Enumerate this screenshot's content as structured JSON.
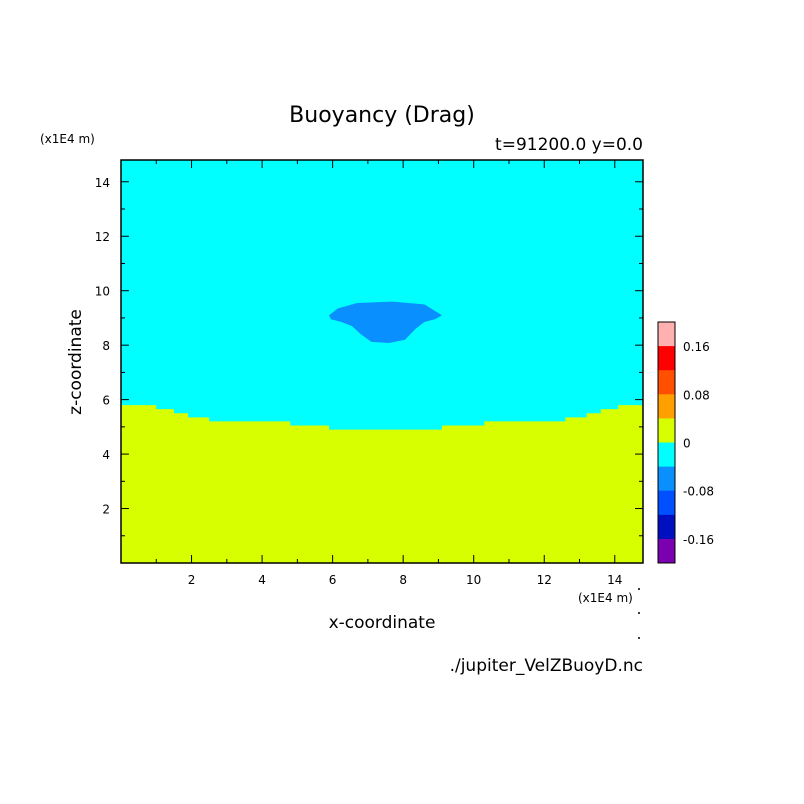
{
  "chart_data": {
    "type": "heatmap",
    "title": "Buoyancy (Drag)",
    "subtitle": "t=91200.0 y=0.0",
    "xlabel": "x-coordinate",
    "ylabel": "z-coordinate",
    "x_unit": "(x1E4 m)",
    "y_unit": "(x1E4 m)",
    "footer": "./jupiter_VelZBuoyD.nc",
    "xlim": [
      0,
      14.8
    ],
    "ylim": [
      0,
      14.8
    ],
    "xticks": [
      2,
      4,
      6,
      8,
      10,
      12,
      14
    ],
    "yticks": [
      2,
      4,
      6,
      8,
      10,
      12,
      14
    ],
    "background_color": "#00ffff",
    "lower_region": {
      "color": "#d8ff00",
      "level": "0 to 0.04",
      "top_boundary": [
        [
          0,
          5.8
        ],
        [
          1.0,
          5.8
        ],
        [
          1.0,
          5.65
        ],
        [
          1.5,
          5.65
        ],
        [
          1.5,
          5.5
        ],
        [
          1.9,
          5.5
        ],
        [
          1.9,
          5.35
        ],
        [
          2.5,
          5.35
        ],
        [
          2.5,
          5.2
        ],
        [
          4.8,
          5.2
        ],
        [
          4.8,
          5.05
        ],
        [
          5.9,
          5.05
        ],
        [
          5.9,
          4.9
        ],
        [
          9.1,
          4.9
        ],
        [
          9.1,
          5.05
        ],
        [
          10.3,
          5.05
        ],
        [
          10.3,
          5.2
        ],
        [
          12.6,
          5.2
        ],
        [
          12.6,
          5.35
        ],
        [
          13.2,
          5.35
        ],
        [
          13.2,
          5.5
        ],
        [
          13.6,
          5.5
        ],
        [
          13.6,
          5.65
        ],
        [
          14.1,
          5.65
        ],
        [
          14.1,
          5.8
        ],
        [
          14.8,
          5.8
        ]
      ]
    },
    "anomaly_region": {
      "color": "#0a8fff",
      "level": "-0.08 to -0.04",
      "outline": [
        [
          5.9,
          9.1
        ],
        [
          6.15,
          9.35
        ],
        [
          6.7,
          9.55
        ],
        [
          7.7,
          9.6
        ],
        [
          8.6,
          9.5
        ],
        [
          9.1,
          9.1
        ],
        [
          8.9,
          8.95
        ],
        [
          8.6,
          8.85
        ],
        [
          8.35,
          8.6
        ],
        [
          8.05,
          8.2
        ],
        [
          7.6,
          8.08
        ],
        [
          7.1,
          8.12
        ],
        [
          6.8,
          8.4
        ],
        [
          6.55,
          8.7
        ],
        [
          6.25,
          8.85
        ],
        [
          5.95,
          8.95
        ]
      ]
    },
    "colorbar": {
      "levels": [
        {
          "color": "#ffb0b0"
        },
        {
          "color": "#ff0000"
        },
        {
          "color": "#ff5000"
        },
        {
          "color": "#ff9f00"
        },
        {
          "color": "#d8ff00"
        },
        {
          "color": "#00ffff"
        },
        {
          "color": "#0a8fff"
        },
        {
          "color": "#0050ff"
        },
        {
          "color": "#0010c0"
        },
        {
          "color": "#7a00b0"
        }
      ],
      "labels": [
        {
          "text": "0.16",
          "value": 0.16
        },
        {
          "text": "0.08",
          "value": 0.08
        },
        {
          "text": "0",
          "value": 0
        },
        {
          "text": "-0.08",
          "value": -0.08
        },
        {
          "text": "-0.16",
          "value": -0.16
        }
      ],
      "range": [
        -0.2,
        0.2
      ]
    }
  }
}
